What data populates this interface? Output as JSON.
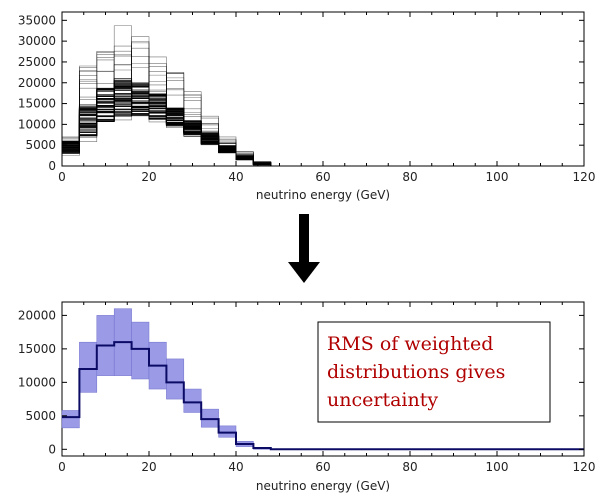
{
  "chart_data": [
    {
      "type": "line",
      "description_role": "top",
      "xlabel": "neutrino energy (GeV)",
      "ylabel": "",
      "xlim": [
        0,
        120
      ],
      "ylim": [
        0,
        37000
      ],
      "x_ticks": [
        0,
        20,
        40,
        60,
        80,
        100,
        120
      ],
      "y_ticks": [
        0,
        5000,
        10000,
        15000,
        20000,
        25000,
        30000,
        35000
      ],
      "bin_edges": [
        0,
        4,
        8,
        12,
        16,
        20,
        24,
        28,
        32,
        36,
        40,
        44,
        48,
        52,
        56,
        60,
        64,
        68,
        72,
        76,
        80,
        84,
        88,
        92,
        96,
        100,
        104,
        108,
        112,
        116,
        120
      ],
      "envelope_low": [
        2500,
        5500,
        9000,
        10500,
        11000,
        10000,
        8500,
        7000,
        5000,
        3000,
        1300,
        200,
        0,
        0,
        0,
        0,
        0,
        0,
        0,
        0,
        0,
        0,
        0,
        0,
        0,
        0,
        0,
        0,
        0,
        0
      ],
      "envelope_high": [
        7000,
        25000,
        34000,
        35000,
        32000,
        27000,
        23000,
        18000,
        12000,
        7000,
        3500,
        1200,
        0,
        0,
        0,
        0,
        0,
        0,
        0,
        0,
        0,
        0,
        0,
        0,
        0,
        0,
        0,
        0,
        0,
        0
      ],
      "dense_band_low": [
        3000,
        7000,
        10500,
        12000,
        12000,
        11000,
        9500,
        7500,
        5200,
        3200,
        1500,
        300,
        0,
        0,
        0,
        0,
        0,
        0,
        0,
        0,
        0,
        0,
        0,
        0,
        0,
        0,
        0,
        0,
        0,
        0
      ],
      "dense_band_high": [
        6000,
        15000,
        19000,
        21000,
        20000,
        17500,
        14000,
        11000,
        8000,
        5000,
        2500,
        800,
        0,
        0,
        0,
        0,
        0,
        0,
        0,
        0,
        0,
        0,
        0,
        0,
        0,
        0,
        0,
        0,
        0,
        0
      ],
      "n_variations": 60,
      "colors": {
        "lines": "#000000"
      }
    },
    {
      "type": "area",
      "description_role": "bottom",
      "xlabel": "neutrino energy (GeV)",
      "ylabel": "",
      "xlim": [
        0,
        120
      ],
      "ylim": [
        -1000,
        22000
      ],
      "x_ticks": [
        0,
        20,
        40,
        60,
        80,
        100,
        120
      ],
      "y_ticks": [
        0,
        5000,
        10000,
        15000,
        20000
      ],
      "bin_edges": [
        0,
        4,
        8,
        12,
        16,
        20,
        24,
        28,
        32,
        36,
        40,
        44,
        48,
        52,
        56,
        60,
        64,
        68,
        72,
        76,
        80,
        84,
        88,
        92,
        96,
        100,
        104,
        108,
        112,
        116,
        120
      ],
      "series": [
        {
          "name": "",
          "central": [
            4800,
            12000,
            15500,
            16000,
            15000,
            12500,
            10000,
            7000,
            4500,
            2500,
            800,
            200,
            0,
            0,
            0,
            0,
            0,
            0,
            0,
            0,
            0,
            0,
            0,
            0,
            0,
            0,
            0,
            0,
            0,
            0
          ],
          "low": [
            3200,
            8500,
            11000,
            11000,
            10500,
            9000,
            7500,
            5500,
            3300,
            1800,
            400,
            0,
            0,
            0,
            0,
            0,
            0,
            0,
            0,
            0,
            0,
            0,
            0,
            0,
            0,
            0,
            0,
            0,
            0,
            0
          ],
          "high": [
            5800,
            16000,
            20000,
            21000,
            19000,
            16000,
            13500,
            9000,
            6000,
            3500,
            1200,
            300,
            0,
            0,
            0,
            0,
            0,
            0,
            0,
            0,
            0,
            0,
            0,
            0,
            0,
            0,
            0,
            0,
            0,
            0
          ]
        }
      ],
      "colors": {
        "line": "#0b0b66",
        "band": "#9a9ae6",
        "band_edge": "#7070cc"
      }
    }
  ],
  "annotation": {
    "lines": [
      "RMS of weighted",
      "distributions gives",
      "uncertainty"
    ],
    "color": "#b00000"
  },
  "arrow": {
    "icon": "down-arrow-icon",
    "color": "#000000"
  }
}
